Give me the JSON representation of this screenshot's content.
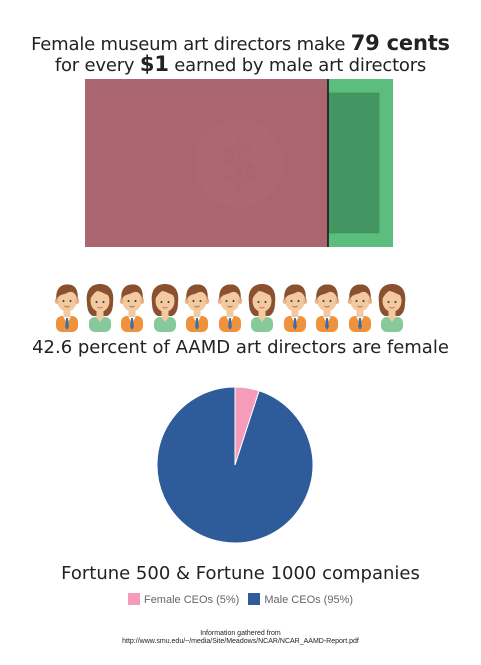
{
  "headline": {
    "line1_prefix": "Female museum art directors make ",
    "line1_emphasis": "79 cents",
    "line2_prefix": "for every ",
    "line2_emphasis": "$1",
    "line2_suffix": " earned by male art directors"
  },
  "pay_gap": {
    "female_fraction": 0.79,
    "female_color": "#b2606e",
    "male_color": "#5bbe7f",
    "bill_symbol": "$"
  },
  "people_row": {
    "pattern": [
      "male",
      "female",
      "male",
      "female",
      "male",
      "male",
      "female",
      "male",
      "male",
      "male",
      "female"
    ],
    "female_fraction": 0.426
  },
  "female_stat": "42.6 percent of AAMD art directors are female",
  "chart_data": {
    "type": "pie",
    "title": "Fortune 500 & Fortune 1000 companies",
    "series": [
      {
        "name": "Female CEOs (5%)",
        "value": 5,
        "color": "#f59cba"
      },
      {
        "name": "Male CEOs (95%)",
        "value": 95,
        "color": "#2e5b9a"
      }
    ],
    "legend_position": "bottom"
  },
  "source": {
    "line1": "Information gathered from",
    "line2": "http://www.smu.edu/~/media/Site/Meadows/NCAR/NCAR_AAMD-Report.pdf"
  }
}
